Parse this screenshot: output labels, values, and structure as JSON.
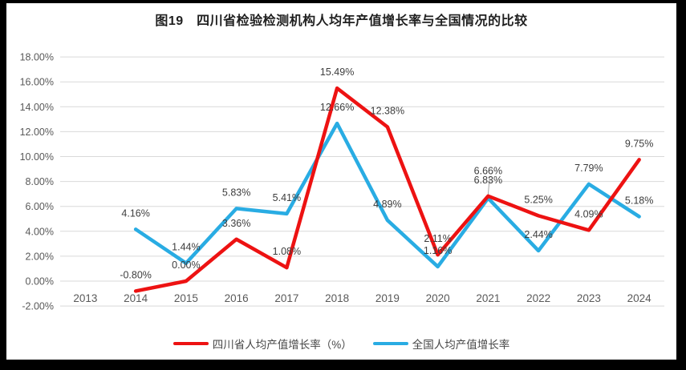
{
  "title": "图19　四川省检验检测机构人均年产值增长率与全国情况的比较",
  "chart_data": {
    "type": "line",
    "title": "图19　四川省检验检测机构人均年产值增长率与全国情况的比较",
    "categories": [
      "2013",
      "2014",
      "2015",
      "2016",
      "2017",
      "2018",
      "2019",
      "2020",
      "2021",
      "2022",
      "2023",
      "2024"
    ],
    "series": [
      {
        "name": "四川省人均产值增长率（%）",
        "color": "#ed1212",
        "values": [
          null,
          -0.8,
          0.0,
          3.36,
          1.08,
          15.49,
          12.38,
          2.11,
          6.83,
          5.25,
          4.09,
          9.75
        ],
        "labels": [
          null,
          "-0.80%",
          "0.00%",
          "3.36%",
          "1.08%",
          "15.49%",
          "12.38%",
          "2.11%",
          "6.83%",
          "5.25%",
          "4.09%",
          "9.75%"
        ]
      },
      {
        "name": "全国人均产值增长率",
        "color": "#29ace3",
        "values": [
          null,
          4.16,
          1.44,
          5.83,
          5.41,
          12.66,
          4.89,
          1.16,
          6.66,
          2.44,
          7.79,
          5.18
        ],
        "labels": [
          null,
          "4.16%",
          "1.44%",
          "5.83%",
          "5.41%",
          "12.66%",
          "4.89%",
          "1.16%",
          "6.66%",
          "2.44%",
          "7.79%",
          "5.18%"
        ]
      }
    ],
    "xlabel": "",
    "ylabel": "",
    "ylim": [
      -2,
      18
    ],
    "ytick_step": 2,
    "ytick_labels": [
      "-2.00%",
      "0.00%",
      "2.00%",
      "4.00%",
      "6.00%",
      "8.00%",
      "10.00%",
      "12.00%",
      "14.00%",
      "16.00%",
      "18.00%"
    ],
    "grid": true,
    "data_labels": true,
    "legend_position": "bottom"
  },
  "colors": {
    "grid": "#d9d9d9",
    "axis_text": "#595959",
    "data_label_text": "#3d3d3d",
    "leader_line": "#a6a6a6",
    "background": "#ffffff",
    "frame": "#000000"
  }
}
